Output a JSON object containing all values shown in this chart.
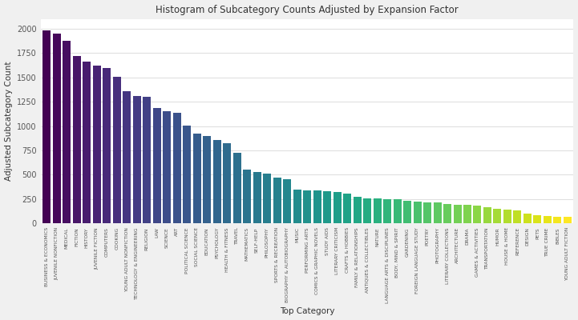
{
  "title": "Histogram of Subcategory Counts Adjusted by Expansion Factor",
  "xlabel": "Top Category",
  "ylabel": "Adjusted Subcategory Count",
  "categories": [
    "BUSINESS & ECONOMICS",
    "JUVENILE NONFICTION",
    "MEDICAL",
    "FICTION",
    "HISTORY",
    "JUVENILE FICTION",
    "COMPUTERS",
    "COOKING",
    "YOUNG ADULT NONFICTION",
    "TECHNOLOGY & ENGINEERING",
    "RELIGION",
    "LAW",
    "SCIENCE",
    "ART",
    "POLITICAL SCIENCE",
    "SOCIAL SCIENCE",
    "EDUCATION",
    "PSYCHOLOGY",
    "HEALTH & FITNESS",
    "TRAVEL",
    "MATHEMATICS",
    "SELF-HELP",
    "PHILOSOPHY",
    "SPORTS & RECREATION",
    "BIOGRAPHY & AUTOBIOGRAPHY",
    "MUSIC",
    "PERFORMING ARTS",
    "COMICS & GRAPHIC NOVELS",
    "STUDY AIDS",
    "LITERARY CRITICISM",
    "CRAFTS & HOBBIES",
    "FAMILY & RELATIONSHIPS",
    "ANTIQUES & COLLECTIBLES",
    "NATURE",
    "LANGUAGE ARTS & DISCIPLINES",
    "BODY, MIND & SPIRIT",
    "GARDENING",
    "FOREIGN LANGUAGE STUDY",
    "POETRY",
    "PHOTOGRAPHY",
    "LITERARY COLLECTIONS",
    "ARCHITECTURE",
    "DRAMA",
    "GAMES & ACTIVITIES",
    "TRANSPORTATION",
    "HUMOR",
    "HOUSE & HOME",
    "REFERENCE",
    "DESIGN",
    "PETS",
    "TRUE CRIME",
    "BIBLES",
    "YOUNG ADULT FICTION"
  ],
  "values": [
    1980,
    1950,
    1880,
    1720,
    1660,
    1620,
    1600,
    1510,
    1360,
    1310,
    1300,
    1190,
    1155,
    1135,
    1005,
    920,
    895,
    855,
    825,
    725,
    555,
    530,
    510,
    470,
    455,
    350,
    340,
    340,
    330,
    320,
    310,
    275,
    260,
    255,
    250,
    245,
    235,
    225,
    220,
    215,
    200,
    195,
    190,
    185,
    165,
    150,
    140,
    130,
    100,
    85,
    75,
    70,
    65
  ],
  "colormap": "viridis",
  "plot_bg": "#ffffff",
  "fig_bg": "#f0f0f0",
  "grid_color": "#e0e0e0"
}
